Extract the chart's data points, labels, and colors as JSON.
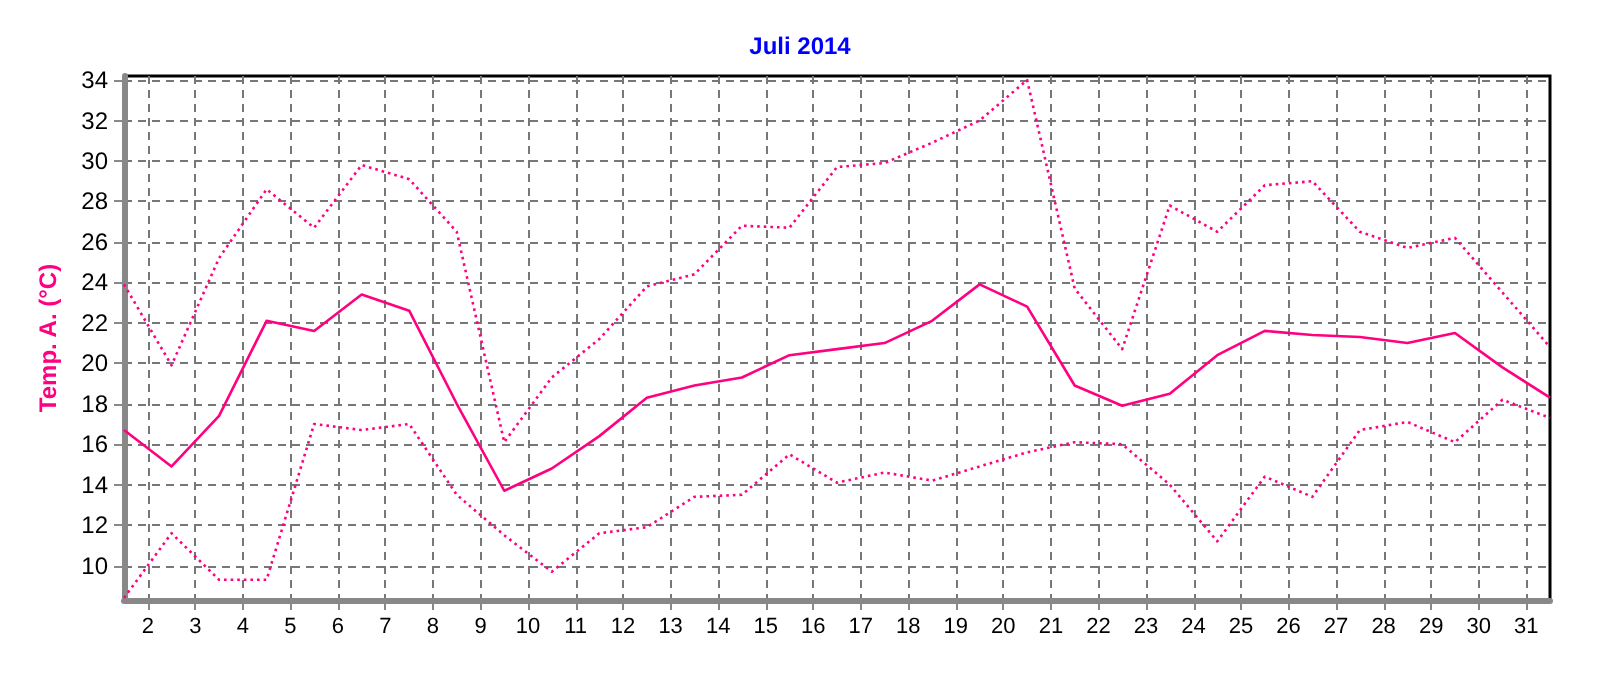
{
  "chart_data": {
    "type": "line",
    "title": "Juli 2014",
    "ylabel": "Temp. A. (°C)",
    "x": [
      1.5,
      2.5,
      3.5,
      4.5,
      5.5,
      6.5,
      7.5,
      8.5,
      9.5,
      10.5,
      11.5,
      12.5,
      13.5,
      14.5,
      15.5,
      16.5,
      17.5,
      18.5,
      19.5,
      20.5,
      21.5,
      22.5,
      23.5,
      24.5,
      25.5,
      26.5,
      27.5,
      28.5,
      29.5,
      30.5,
      31.5
    ],
    "series": [
      {
        "color": "#ff0080",
        "line_style": "dotted",
        "values": [
          23.9,
          19.9,
          25.2,
          28.6,
          26.7,
          29.8,
          29.1,
          26.5,
          16.1,
          19.3,
          21.2,
          23.8,
          24.4,
          26.8,
          26.7,
          29.7,
          29.9,
          30.9,
          32.0,
          34.0,
          23.7,
          20.7,
          27.8,
          26.5,
          28.8,
          29.0,
          26.5,
          25.7,
          26.2,
          23.5,
          20.8
        ]
      },
      {
        "color": "#ff0080",
        "line_style": "solid",
        "values": [
          16.7,
          14.9,
          17.4,
          22.1,
          21.6,
          23.4,
          22.6,
          18.0,
          13.7,
          14.8,
          16.4,
          18.3,
          18.9,
          19.3,
          20.4,
          20.7,
          21.0,
          22.1,
          23.9,
          22.8,
          18.9,
          17.9,
          18.5,
          20.4,
          21.6,
          21.4,
          21.3,
          21.0,
          21.5,
          19.8,
          18.3
        ]
      },
      {
        "color": "#ff0080",
        "line_style": "dotted",
        "values": [
          8.4,
          11.6,
          9.3,
          9.3,
          17.0,
          16.7,
          17.0,
          13.5,
          11.5,
          9.7,
          11.6,
          11.9,
          13.4,
          13.5,
          15.5,
          14.1,
          14.6,
          14.2,
          14.9,
          15.6,
          16.1,
          16.0,
          14.0,
          11.2,
          14.4,
          13.4,
          16.7,
          17.1,
          16.1,
          18.2,
          17.3
        ]
      }
    ],
    "xlim": [
      1.5,
      31.5
    ],
    "xticks": [
      2,
      3,
      4,
      5,
      6,
      7,
      8,
      9,
      10,
      11,
      12,
      13,
      14,
      15,
      16,
      17,
      18,
      19,
      20,
      21,
      22,
      23,
      24,
      25,
      26,
      27,
      28,
      29,
      30,
      31
    ],
    "ylim": [
      8.3,
      34.2
    ],
    "yticks": [
      10,
      12,
      14,
      16,
      18,
      20,
      22,
      24,
      26,
      28,
      30,
      32,
      34
    ],
    "grid": true,
    "marker": "none"
  }
}
